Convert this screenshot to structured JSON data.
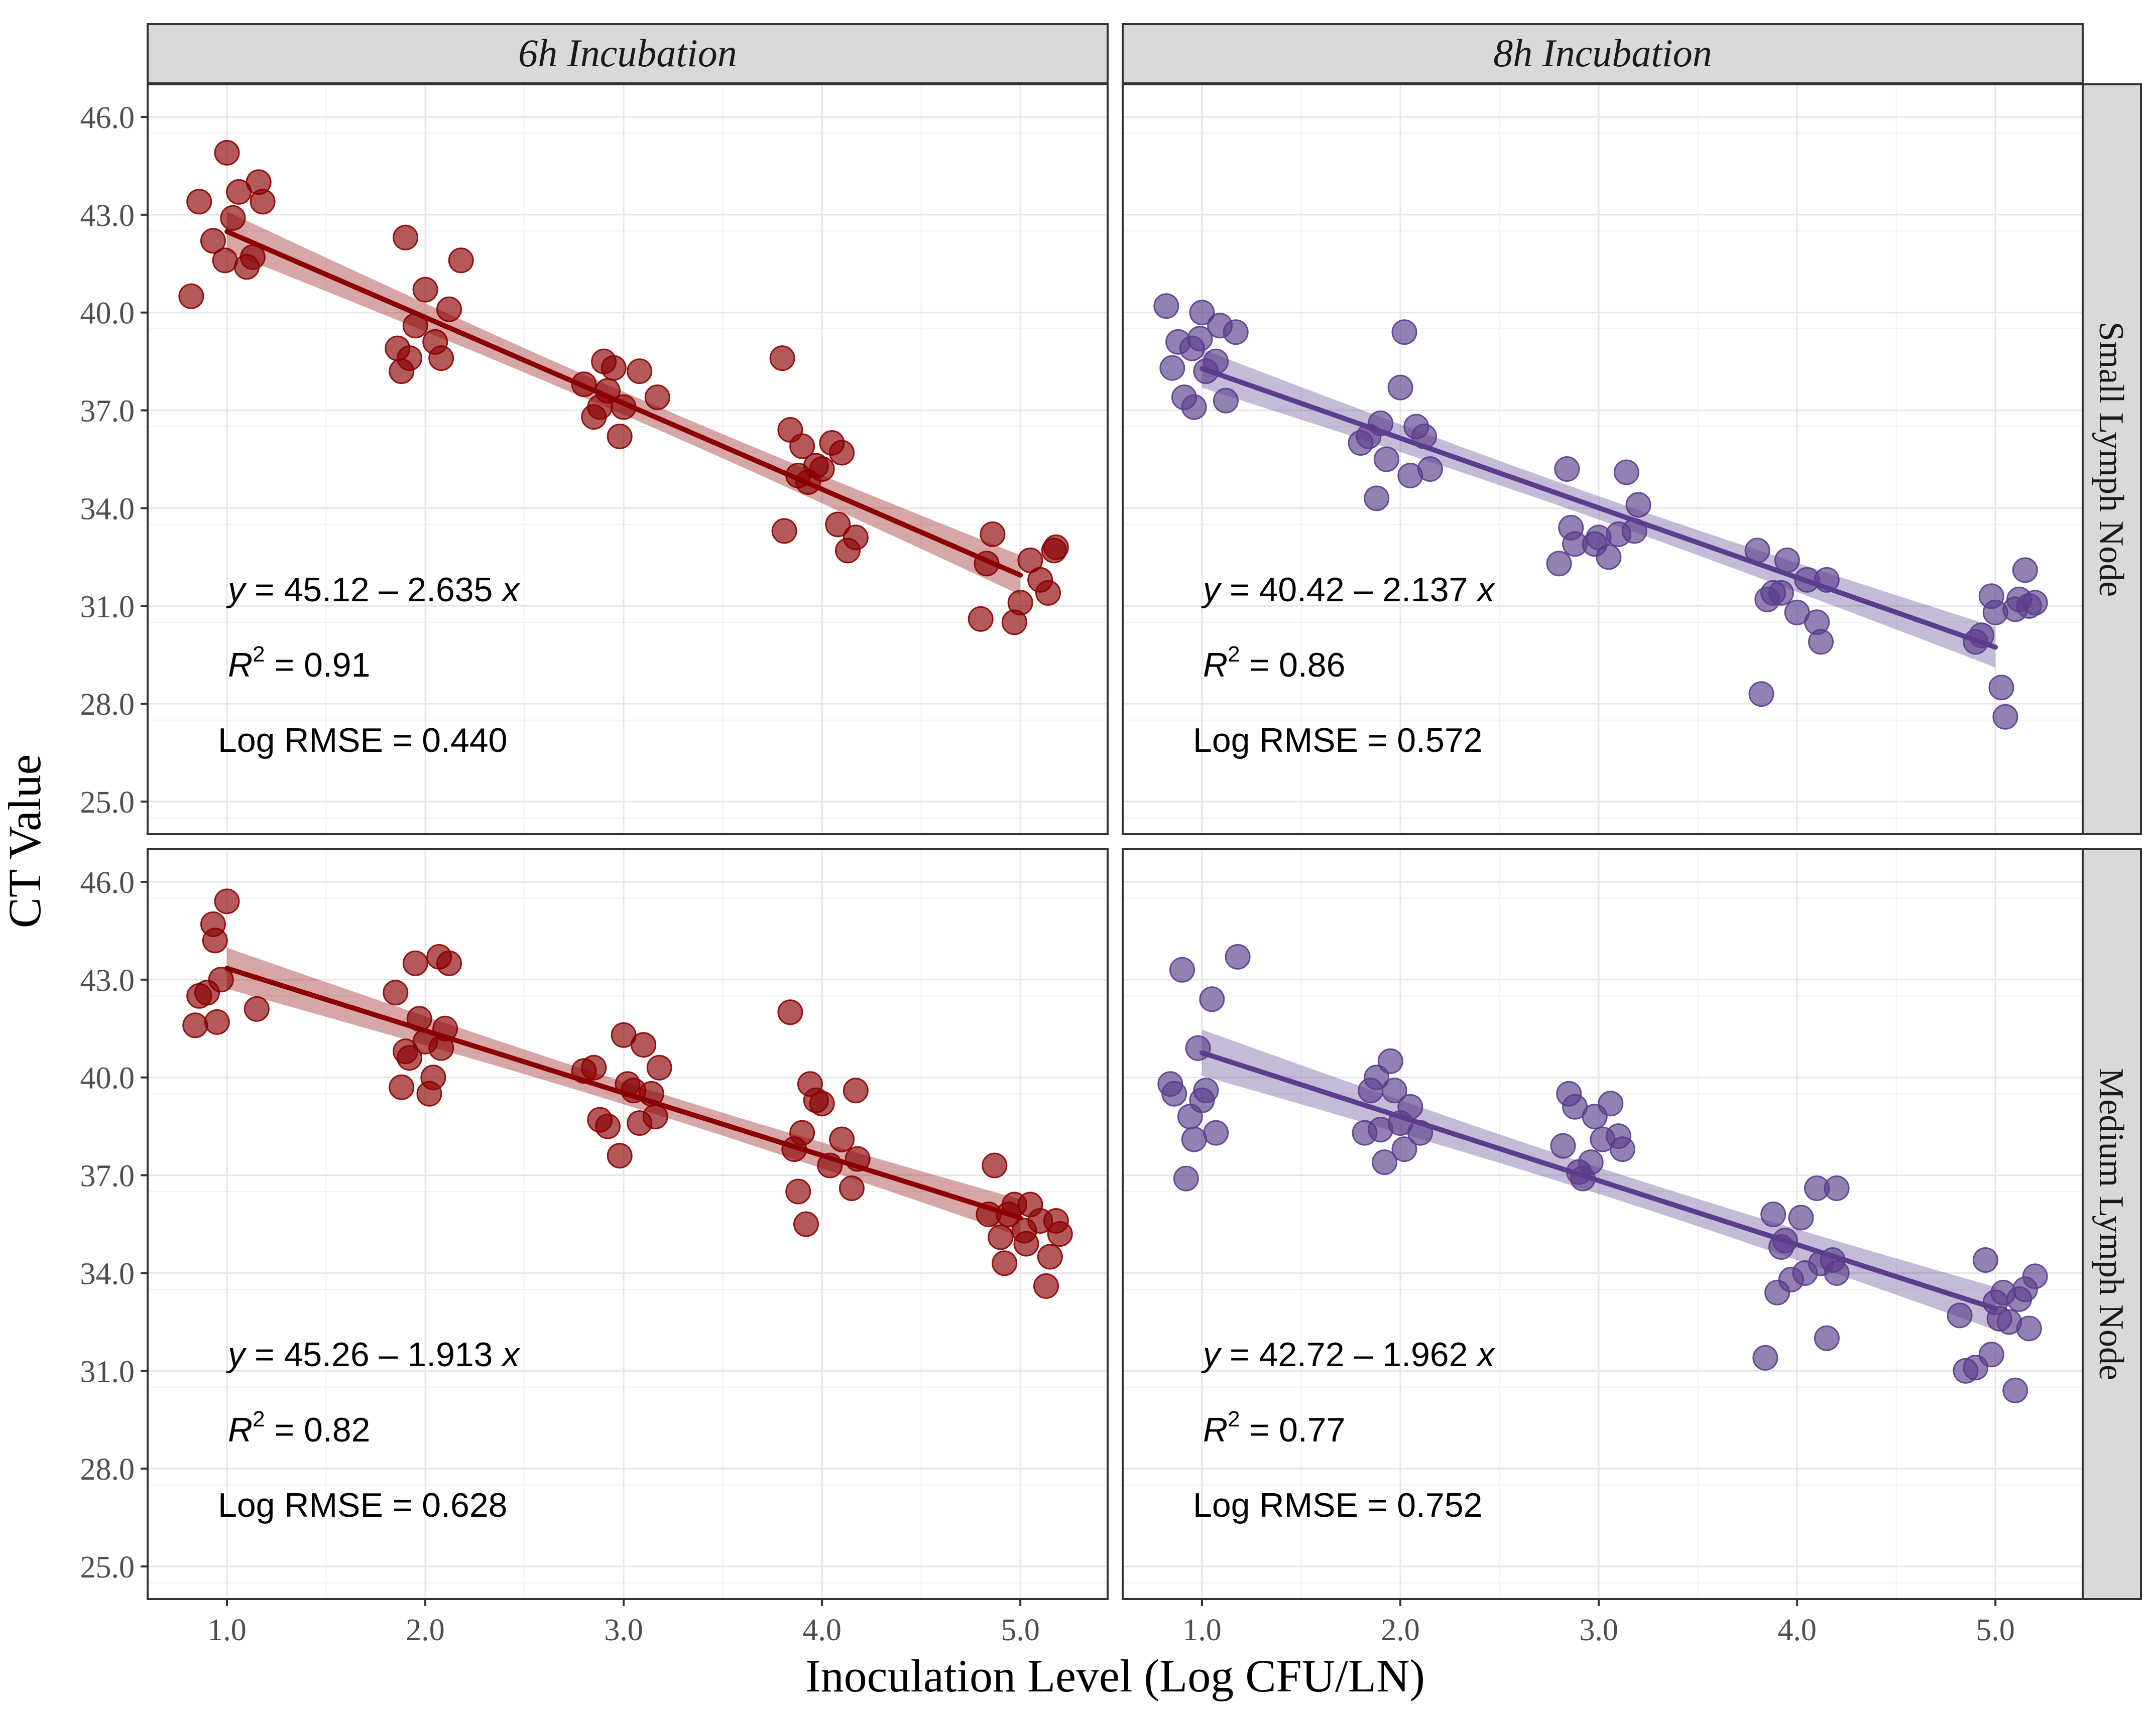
{
  "chart_data": {
    "type": "scatter",
    "xlabel": "Inoculation Level (Log CFU/LN)",
    "ylabel": "CT Value",
    "xlim": [
      0.6,
      5.44
    ],
    "ylim": [
      24.0,
      47.0
    ],
    "x_ticks": [
      "1.0",
      "2.0",
      "3.0",
      "4.0",
      "5.0"
    ],
    "y_ticks": [
      "25.0",
      "28.0",
      "31.0",
      "34.0",
      "37.0",
      "40.0",
      "43.0",
      "46.0"
    ],
    "column_labels": [
      "6h Incubation",
      "8h Incubation"
    ],
    "row_labels": [
      "Small Lymph Node",
      "Medium Lymph Node"
    ],
    "colors": {
      "6h": "#8b0000",
      "8h": "#5a3d8c"
    },
    "panels": [
      {
        "col": 0,
        "row": 0,
        "series": "6h",
        "fit": {
          "intercept": 45.12,
          "slope": -2.635,
          "x_range": [
            1.0,
            5.0
          ]
        },
        "annotation": {
          "y_prefix": "y",
          "equation": " = 45.12 – 2.635 ",
          "x_suffix": "x",
          "r_prefix": "R",
          "r_sup": "2",
          "r2": " = 0.91",
          "rmse": "Log RMSE = 0.440"
        },
        "points": [
          [
            0.82,
            40.5
          ],
          [
            0.86,
            43.4
          ],
          [
            0.93,
            42.2
          ],
          [
            0.99,
            41.6
          ],
          [
            1.0,
            44.9
          ],
          [
            1.03,
            42.9
          ],
          [
            1.06,
            43.7
          ],
          [
            1.1,
            41.4
          ],
          [
            1.13,
            41.7
          ],
          [
            1.16,
            44.0
          ],
          [
            1.18,
            43.4
          ],
          [
            1.86,
            38.9
          ],
          [
            1.88,
            38.2
          ],
          [
            1.9,
            42.3
          ],
          [
            1.92,
            38.6
          ],
          [
            1.95,
            39.6
          ],
          [
            2.0,
            40.7
          ],
          [
            2.05,
            39.1
          ],
          [
            2.08,
            38.6
          ],
          [
            2.12,
            40.1
          ],
          [
            2.18,
            41.6
          ],
          [
            2.8,
            37.8
          ],
          [
            2.85,
            36.8
          ],
          [
            2.88,
            37.1
          ],
          [
            2.9,
            38.5
          ],
          [
            2.92,
            37.6
          ],
          [
            2.95,
            38.3
          ],
          [
            2.98,
            36.2
          ],
          [
            3.0,
            37.1
          ],
          [
            3.08,
            38.2
          ],
          [
            3.17,
            37.4
          ],
          [
            3.8,
            38.6
          ],
          [
            3.81,
            33.3
          ],
          [
            3.84,
            36.4
          ],
          [
            3.88,
            35.0
          ],
          [
            3.9,
            35.9
          ],
          [
            3.93,
            34.8
          ],
          [
            3.97,
            35.3
          ],
          [
            4.0,
            35.2
          ],
          [
            4.05,
            36.0
          ],
          [
            4.08,
            33.5
          ],
          [
            4.1,
            35.7
          ],
          [
            4.13,
            32.7
          ],
          [
            4.17,
            33.1
          ],
          [
            4.8,
            30.6
          ],
          [
            4.83,
            32.3
          ],
          [
            4.86,
            33.2
          ],
          [
            4.97,
            30.5
          ],
          [
            5.0,
            31.1
          ],
          [
            5.05,
            32.4
          ],
          [
            5.1,
            31.8
          ],
          [
            5.14,
            31.4
          ],
          [
            5.17,
            32.7
          ],
          [
            5.18,
            32.8
          ]
        ]
      },
      {
        "col": 1,
        "row": 0,
        "series": "8h",
        "fit": {
          "intercept": 40.42,
          "slope": -2.137,
          "x_range": [
            1.0,
            5.0
          ]
        },
        "annotation": {
          "y_prefix": "y",
          "equation": " = 40.42 – 2.137 ",
          "x_suffix": "x",
          "r_prefix": "R",
          "r_sup": "2",
          "r2": " = 0.86",
          "rmse": "Log RMSE = 0.572"
        },
        "points": [
          [
            0.82,
            40.2
          ],
          [
            0.85,
            38.3
          ],
          [
            0.88,
            39.1
          ],
          [
            0.91,
            37.4
          ],
          [
            0.95,
            38.9
          ],
          [
            0.96,
            37.1
          ],
          [
            0.99,
            39.2
          ],
          [
            1.0,
            40.0
          ],
          [
            1.02,
            38.2
          ],
          [
            1.07,
            38.5
          ],
          [
            1.09,
            39.6
          ],
          [
            1.12,
            37.3
          ],
          [
            1.17,
            39.4
          ],
          [
            1.8,
            36.0
          ],
          [
            1.84,
            36.2
          ],
          [
            1.88,
            34.3
          ],
          [
            1.9,
            36.6
          ],
          [
            1.93,
            35.5
          ],
          [
            2.0,
            37.7
          ],
          [
            2.02,
            39.4
          ],
          [
            2.05,
            35.0
          ],
          [
            2.08,
            36.5
          ],
          [
            2.12,
            36.2
          ],
          [
            2.15,
            35.2
          ],
          [
            2.8,
            32.3
          ],
          [
            2.84,
            35.2
          ],
          [
            2.86,
            33.4
          ],
          [
            2.88,
            32.9
          ],
          [
            2.98,
            32.9
          ],
          [
            3.0,
            33.1
          ],
          [
            3.05,
            32.5
          ],
          [
            3.1,
            33.2
          ],
          [
            3.14,
            35.1
          ],
          [
            3.18,
            33.3
          ],
          [
            3.2,
            34.1
          ],
          [
            3.8,
            32.7
          ],
          [
            3.82,
            28.3
          ],
          [
            3.85,
            31.2
          ],
          [
            3.88,
            31.4
          ],
          [
            3.92,
            31.4
          ],
          [
            3.95,
            32.4
          ],
          [
            4.0,
            30.8
          ],
          [
            4.05,
            31.8
          ],
          [
            4.1,
            30.5
          ],
          [
            4.12,
            29.9
          ],
          [
            4.15,
            31.8
          ],
          [
            4.9,
            29.9
          ],
          [
            4.93,
            30.1
          ],
          [
            4.98,
            31.3
          ],
          [
            5.0,
            30.8
          ],
          [
            5.03,
            28.5
          ],
          [
            5.05,
            27.6
          ],
          [
            5.1,
            30.9
          ],
          [
            5.12,
            31.2
          ],
          [
            5.15,
            32.1
          ],
          [
            5.17,
            31.0
          ],
          [
            5.2,
            31.1
          ]
        ]
      },
      {
        "col": 0,
        "row": 1,
        "series": "6h",
        "fit": {
          "intercept": 45.26,
          "slope": -1.913,
          "x_range": [
            1.0,
            5.0
          ]
        },
        "annotation": {
          "y_prefix": "y",
          "equation": " = 45.26 – 1.913 ",
          "x_suffix": "x",
          "r_prefix": "R",
          "r_sup": "2",
          "r2": " = 0.82",
          "rmse": "Log RMSE = 0.628"
        },
        "points": [
          [
            0.84,
            41.6
          ],
          [
            0.86,
            42.5
          ],
          [
            0.9,
            42.6
          ],
          [
            0.93,
            44.7
          ],
          [
            0.94,
            44.2
          ],
          [
            0.95,
            41.7
          ],
          [
            0.97,
            43.0
          ],
          [
            1.0,
            45.4
          ],
          [
            1.15,
            42.1
          ],
          [
            1.85,
            42.6
          ],
          [
            1.88,
            39.7
          ],
          [
            1.9,
            40.8
          ],
          [
            1.92,
            40.6
          ],
          [
            1.95,
            43.5
          ],
          [
            1.97,
            41.8
          ],
          [
            2.0,
            41.1
          ],
          [
            2.02,
            39.5
          ],
          [
            2.04,
            40.0
          ],
          [
            2.07,
            43.7
          ],
          [
            2.08,
            40.9
          ],
          [
            2.1,
            41.5
          ],
          [
            2.12,
            43.5
          ],
          [
            2.8,
            40.2
          ],
          [
            2.85,
            40.3
          ],
          [
            2.88,
            38.7
          ],
          [
            2.92,
            38.5
          ],
          [
            2.98,
            37.6
          ],
          [
            3.0,
            41.3
          ],
          [
            3.02,
            39.8
          ],
          [
            3.05,
            39.6
          ],
          [
            3.08,
            38.6
          ],
          [
            3.1,
            41.0
          ],
          [
            3.14,
            39.5
          ],
          [
            3.18,
            40.3
          ],
          [
            3.16,
            38.8
          ],
          [
            3.84,
            42.0
          ],
          [
            3.86,
            37.8
          ],
          [
            3.88,
            36.5
          ],
          [
            3.9,
            38.3
          ],
          [
            3.92,
            35.5
          ],
          [
            3.94,
            39.8
          ],
          [
            3.97,
            39.3
          ],
          [
            4.0,
            39.2
          ],
          [
            4.04,
            37.3
          ],
          [
            4.1,
            38.1
          ],
          [
            4.15,
            36.6
          ],
          [
            4.17,
            39.6
          ],
          [
            4.18,
            37.5
          ],
          [
            4.84,
            35.8
          ],
          [
            4.87,
            37.3
          ],
          [
            4.9,
            35.1
          ],
          [
            4.92,
            34.3
          ],
          [
            4.94,
            35.8
          ],
          [
            4.97,
            36.1
          ],
          [
            5.02,
            35.3
          ],
          [
            5.03,
            34.9
          ],
          [
            5.05,
            36.1
          ],
          [
            5.1,
            35.6
          ],
          [
            5.13,
            33.6
          ],
          [
            5.15,
            34.5
          ],
          [
            5.18,
            35.6
          ],
          [
            5.2,
            35.2
          ]
        ]
      },
      {
        "col": 1,
        "row": 1,
        "series": "8h",
        "fit": {
          "intercept": 42.72,
          "slope": -1.962,
          "x_range": [
            1.0,
            5.0
          ]
        },
        "annotation": {
          "y_prefix": "y",
          "equation": " = 42.72 – 1.962 ",
          "x_suffix": "x",
          "r_prefix": "R",
          "r_sup": "2",
          "r2": " = 0.77",
          "rmse": "Log RMSE = 0.752"
        },
        "points": [
          [
            0.84,
            39.8
          ],
          [
            0.86,
            39.5
          ],
          [
            0.9,
            43.3
          ],
          [
            0.92,
            36.9
          ],
          [
            0.94,
            38.8
          ],
          [
            0.96,
            38.1
          ],
          [
            0.98,
            40.9
          ],
          [
            1.0,
            39.3
          ],
          [
            1.02,
            39.6
          ],
          [
            1.05,
            42.4
          ],
          [
            1.07,
            38.3
          ],
          [
            1.18,
            43.7
          ],
          [
            1.82,
            38.3
          ],
          [
            1.85,
            39.6
          ],
          [
            1.88,
            40.0
          ],
          [
            1.9,
            38.4
          ],
          [
            1.92,
            37.4
          ],
          [
            1.95,
            40.5
          ],
          [
            1.97,
            39.6
          ],
          [
            2.0,
            38.6
          ],
          [
            2.02,
            37.8
          ],
          [
            2.05,
            39.1
          ],
          [
            2.1,
            38.3
          ],
          [
            2.82,
            37.9
          ],
          [
            2.85,
            39.5
          ],
          [
            2.88,
            39.1
          ],
          [
            2.9,
            37.1
          ],
          [
            2.92,
            36.9
          ],
          [
            2.96,
            37.4
          ],
          [
            2.98,
            38.8
          ],
          [
            3.02,
            38.1
          ],
          [
            3.06,
            39.2
          ],
          [
            3.1,
            38.2
          ],
          [
            3.12,
            37.8
          ],
          [
            3.84,
            31.4
          ],
          [
            3.88,
            35.8
          ],
          [
            3.9,
            33.4
          ],
          [
            3.92,
            34.8
          ],
          [
            3.94,
            35.0
          ],
          [
            3.97,
            33.8
          ],
          [
            4.02,
            35.7
          ],
          [
            4.04,
            34.0
          ],
          [
            4.1,
            36.6
          ],
          [
            4.12,
            34.3
          ],
          [
            4.15,
            32.0
          ],
          [
            4.18,
            34.4
          ],
          [
            4.2,
            36.6
          ],
          [
            4.2,
            34.0
          ],
          [
            4.82,
            32.7
          ],
          [
            4.85,
            31.0
          ],
          [
            4.9,
            31.1
          ],
          [
            4.95,
            34.4
          ],
          [
            4.98,
            31.5
          ],
          [
            5.0,
            33.1
          ],
          [
            5.02,
            32.6
          ],
          [
            5.04,
            33.4
          ],
          [
            5.07,
            32.5
          ],
          [
            5.1,
            30.4
          ],
          [
            5.12,
            33.2
          ],
          [
            5.15,
            33.5
          ],
          [
            5.17,
            32.3
          ],
          [
            5.2,
            33.9
          ]
        ]
      }
    ]
  }
}
